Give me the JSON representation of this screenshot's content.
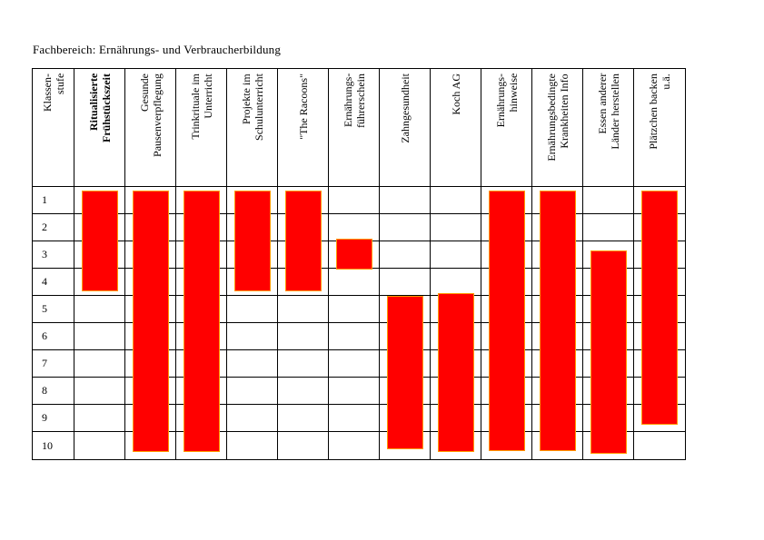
{
  "title": "Fachbereich: Ernährungs- und Verbraucherbildung",
  "colors": {
    "page_background": "#ffffff",
    "grid_line": "#000000",
    "text": "#000000",
    "bar_fill": "#ff0000",
    "bar_border": "#ff9900"
  },
  "table": {
    "row_label_header": "Klassen-\nstufe",
    "grade_rows": [
      "1",
      "2",
      "3",
      "4",
      "5",
      "6",
      "7",
      "8",
      "9",
      "10"
    ],
    "columns": [
      {
        "id": "ritualisierte-fruehstueckszeit",
        "label": "Ritualisierte\nFrühstückszeit",
        "emphasis": true,
        "bar": {
          "start": 1,
          "end": 4
        }
      },
      {
        "id": "gesunde-pausenverpflegung",
        "label": "Gesunde\nPausenverpflegung",
        "bar": {
          "start": 1,
          "end": 9.9
        }
      },
      {
        "id": "trinkrituale-im-unterricht",
        "label": "Trinkrituale im\nUnterricht",
        "bar": {
          "start": 1,
          "end": 9.9
        }
      },
      {
        "id": "projekte-im-schulunterricht",
        "label": "Projekte im\nSchulunterricht",
        "bar": {
          "start": 1,
          "end": 4
        }
      },
      {
        "id": "the-racoons",
        "label": "\"The Racoons\"",
        "bar": {
          "start": 1,
          "end": 4
        }
      },
      {
        "id": "ernaehrungsfuehrerschein",
        "label": "Ernährungs-\nführerschein",
        "bar": {
          "start": 2.75,
          "end": 3.2
        }
      },
      {
        "id": "zahngesundheit",
        "label": "Zahngesundheit",
        "bar": {
          "start": 4.85,
          "end": 9.8
        }
      },
      {
        "id": "koch-ag",
        "label": "Koch AG",
        "bar": {
          "start": 4.75,
          "end": 9.9
        }
      },
      {
        "id": "ernaehrungshinweise",
        "label": "Ernährungs-\nhinweise",
        "bar": {
          "start": 1,
          "end": 9.85
        }
      },
      {
        "id": "ernaehrungsbedingte-krankheiten-info",
        "label": "Ernährungsbedingte\nKrankheiten Info",
        "bar": {
          "start": 1,
          "end": 9.85
        }
      },
      {
        "id": "essen-anderer-laender-herstellen",
        "label": "Essen anderer\nLänder herstellen",
        "bar": {
          "start": 3.2,
          "end": 9.95
        }
      },
      {
        "id": "plaetzchen-backen",
        "label": "Plätzchen backen\nu.ä.",
        "bar": {
          "start": 1,
          "end": 8.9
        }
      }
    ]
  },
  "chart_data": {
    "type": "table",
    "title": "Fachbereich: Ernährungs- und Verbraucherbildung",
    "y_axis": {
      "label": "Klassenstufe",
      "values": [
        1,
        2,
        3,
        4,
        5,
        6,
        7,
        8,
        9,
        10
      ]
    },
    "bar_color": "#ff0000",
    "series": [
      {
        "name": "Ritualisierte Frühstückszeit",
        "grade_start": 1,
        "grade_end": 4
      },
      {
        "name": "Gesunde Pausenverpflegung",
        "grade_start": 1,
        "grade_end": 10
      },
      {
        "name": "Trinkrituale im Unterricht",
        "grade_start": 1,
        "grade_end": 10
      },
      {
        "name": "Projekte im Schulunterricht",
        "grade_start": 1,
        "grade_end": 4
      },
      {
        "name": "\"The Racoons\"",
        "grade_start": 1,
        "grade_end": 4
      },
      {
        "name": "Ernährungsführerschein",
        "grade_start": 3,
        "grade_end": 3
      },
      {
        "name": "Zahngesundheit",
        "grade_start": 5,
        "grade_end": 10
      },
      {
        "name": "Koch AG",
        "grade_start": 5,
        "grade_end": 10
      },
      {
        "name": "Ernährungshinweise",
        "grade_start": 1,
        "grade_end": 10
      },
      {
        "name": "Ernährungsbedingte Krankheiten Info",
        "grade_start": 1,
        "grade_end": 10
      },
      {
        "name": "Essen anderer Länder herstellen",
        "grade_start": 3,
        "grade_end": 10
      },
      {
        "name": "Plätzchen backen u.ä.",
        "grade_start": 1,
        "grade_end": 9
      }
    ]
  }
}
